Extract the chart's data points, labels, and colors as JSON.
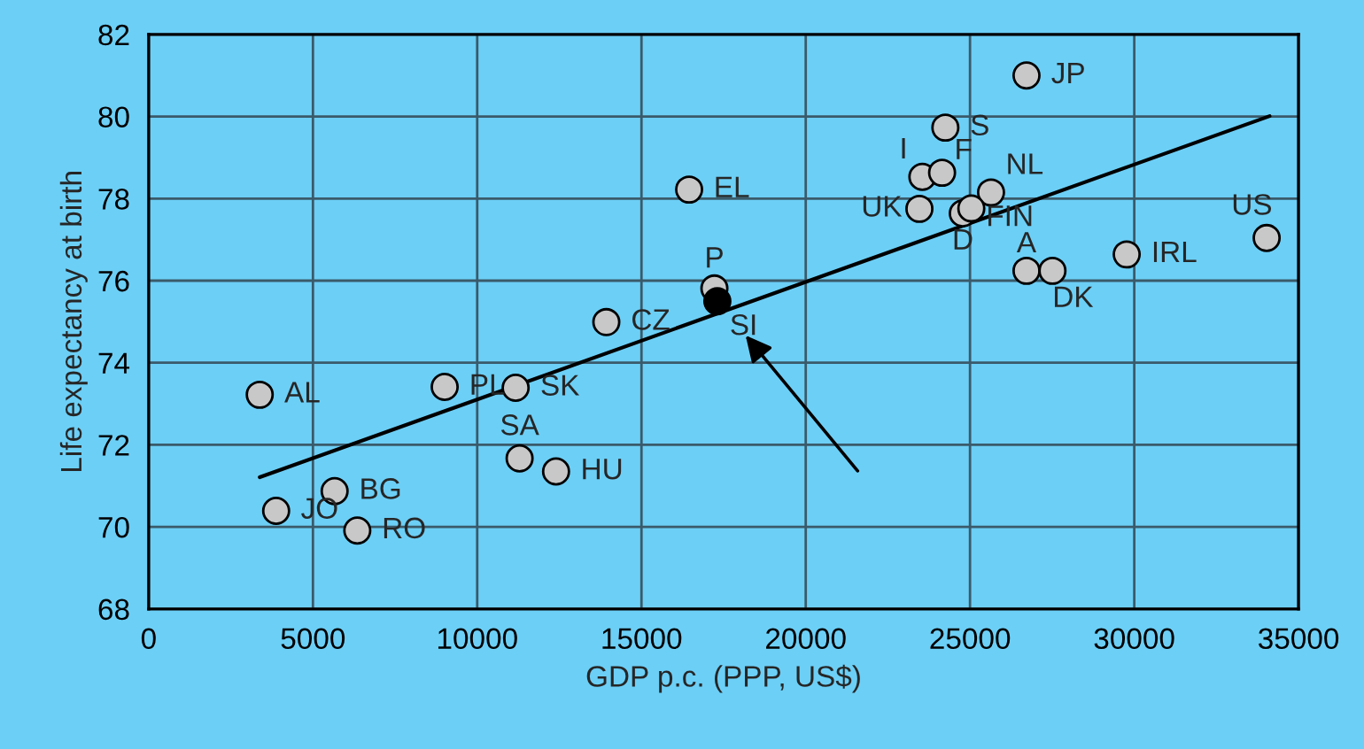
{
  "chart_data": {
    "type": "scatter",
    "xlabel": "GDP p.c. (PPP, US$)",
    "ylabel": "Life expectancy at birth",
    "xlim": [
      0,
      35000
    ],
    "xticks": [
      0,
      5000,
      10000,
      15000,
      20000,
      25000,
      30000,
      35000
    ],
    "ylim": [
      68,
      82
    ],
    "yticks": [
      68,
      70,
      72,
      74,
      76,
      78,
      80,
      82
    ],
    "grid": true,
    "marker": "circle",
    "series": [
      {
        "color": "#c8c8c8",
        "x": [
          3380,
          3880,
          5660,
          6350,
          9010,
          11170,
          11290,
          12400,
          13930,
          17220,
          16450,
          26720,
          24250,
          23550,
          24150,
          25640,
          23460,
          24780,
          25040,
          26720,
          27510,
          29770,
          34030
        ],
        "values": [
          73.22,
          70.39,
          70.87,
          69.91,
          73.41,
          73.39,
          71.67,
          71.35,
          74.99,
          75.81,
          78.22,
          81.0,
          79.73,
          78.53,
          78.63,
          78.15,
          77.75,
          77.64,
          77.76,
          76.24,
          76.24,
          76.64,
          77.04
        ]
      },
      {
        "color": "#000000",
        "x": [
          17310
        ],
        "values": [
          75.5
        ]
      },
      {
        "type": "line",
        "color": "#000000",
        "marker": "none",
        "x": [
          3380,
          34120
        ],
        "values": [
          71.21,
          80.01
        ]
      }
    ],
    "annotations": [
      {
        "text": "AL",
        "x": 3380,
        "y": 73.22
      },
      {
        "text": "JO",
        "x": 3880,
        "y": 70.39
      },
      {
        "text": "BG",
        "x": 5660,
        "y": 70.87
      },
      {
        "text": "RO",
        "x": 6350,
        "y": 69.91
      },
      {
        "text": "PL",
        "x": 9010,
        "y": 73.41
      },
      {
        "text": "SK",
        "x": 11170,
        "y": 73.39
      },
      {
        "text": "SA",
        "x": 11290,
        "y": 71.67
      },
      {
        "text": "HU",
        "x": 12400,
        "y": 71.35
      },
      {
        "text": "CZ",
        "x": 13930,
        "y": 74.99
      },
      {
        "text": "P",
        "x": 17220,
        "y": 75.81
      },
      {
        "text": "SI",
        "x": 17310,
        "y": 75.5
      },
      {
        "text": "EL",
        "x": 16450,
        "y": 78.22
      },
      {
        "text": "JP",
        "x": 26720,
        "y": 81.0
      },
      {
        "text": "S",
        "x": 24250,
        "y": 79.73
      },
      {
        "text": "I",
        "x": 23550,
        "y": 78.53
      },
      {
        "text": "F",
        "x": 24150,
        "y": 78.63
      },
      {
        "text": "NL",
        "x": 25640,
        "y": 78.15
      },
      {
        "text": "UK",
        "x": 23460,
        "y": 77.75
      },
      {
        "text": "D",
        "x": 24780,
        "y": 77.64
      },
      {
        "text": "FIN",
        "x": 25040,
        "y": 77.76
      },
      {
        "text": "A",
        "x": 26720,
        "y": 76.24
      },
      {
        "text": "DK",
        "x": 27510,
        "y": 76.24
      },
      {
        "text": "IRL",
        "x": 29770,
        "y": 76.64
      },
      {
        "text": "US",
        "x": 34030,
        "y": 77.04
      }
    ]
  }
}
